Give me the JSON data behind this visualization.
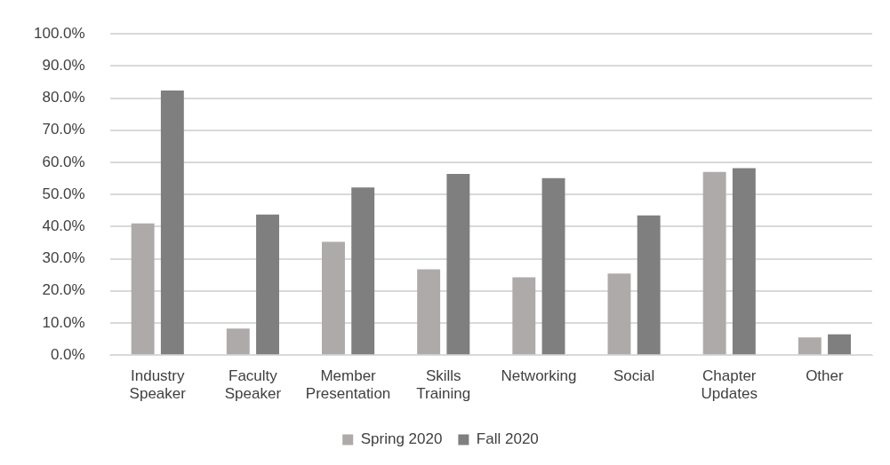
{
  "chart_data": {
    "type": "bar",
    "categories": [
      "Industry Speaker",
      "Faculty Speaker",
      "Member Presentation",
      "Skills Training",
      "Networking",
      "Social",
      "Chapter Updates",
      "Other"
    ],
    "series": [
      {
        "name": "Spring 2020",
        "color": "#aeaaaa",
        "values": [
          41.0,
          8.3,
          35.3,
          26.7,
          24.2,
          25.4,
          57.0,
          5.5
        ]
      },
      {
        "name": "Fall 2020",
        "color": "#7f7f7f",
        "values": [
          82.4,
          43.8,
          52.2,
          56.4,
          55.1,
          43.5,
          58.2,
          6.5
        ]
      }
    ],
    "ylim": [
      0,
      100
    ],
    "yticks": [
      {
        "value": 0,
        "label": "0.0%"
      },
      {
        "value": 10,
        "label": "10.0%"
      },
      {
        "value": 20,
        "label": "20.0%"
      },
      {
        "value": 30,
        "label": "30.0%"
      },
      {
        "value": 40,
        "label": "40.0%"
      },
      {
        "value": 50,
        "label": "50.0%"
      },
      {
        "value": 60,
        "label": "60.0%"
      },
      {
        "value": 70,
        "label": "70.0%"
      },
      {
        "value": 80,
        "label": "80.0%"
      },
      {
        "value": 90,
        "label": "90.0%"
      },
      {
        "value": 100,
        "label": "100.0%"
      }
    ],
    "grid": "y",
    "legend": "bottom"
  }
}
